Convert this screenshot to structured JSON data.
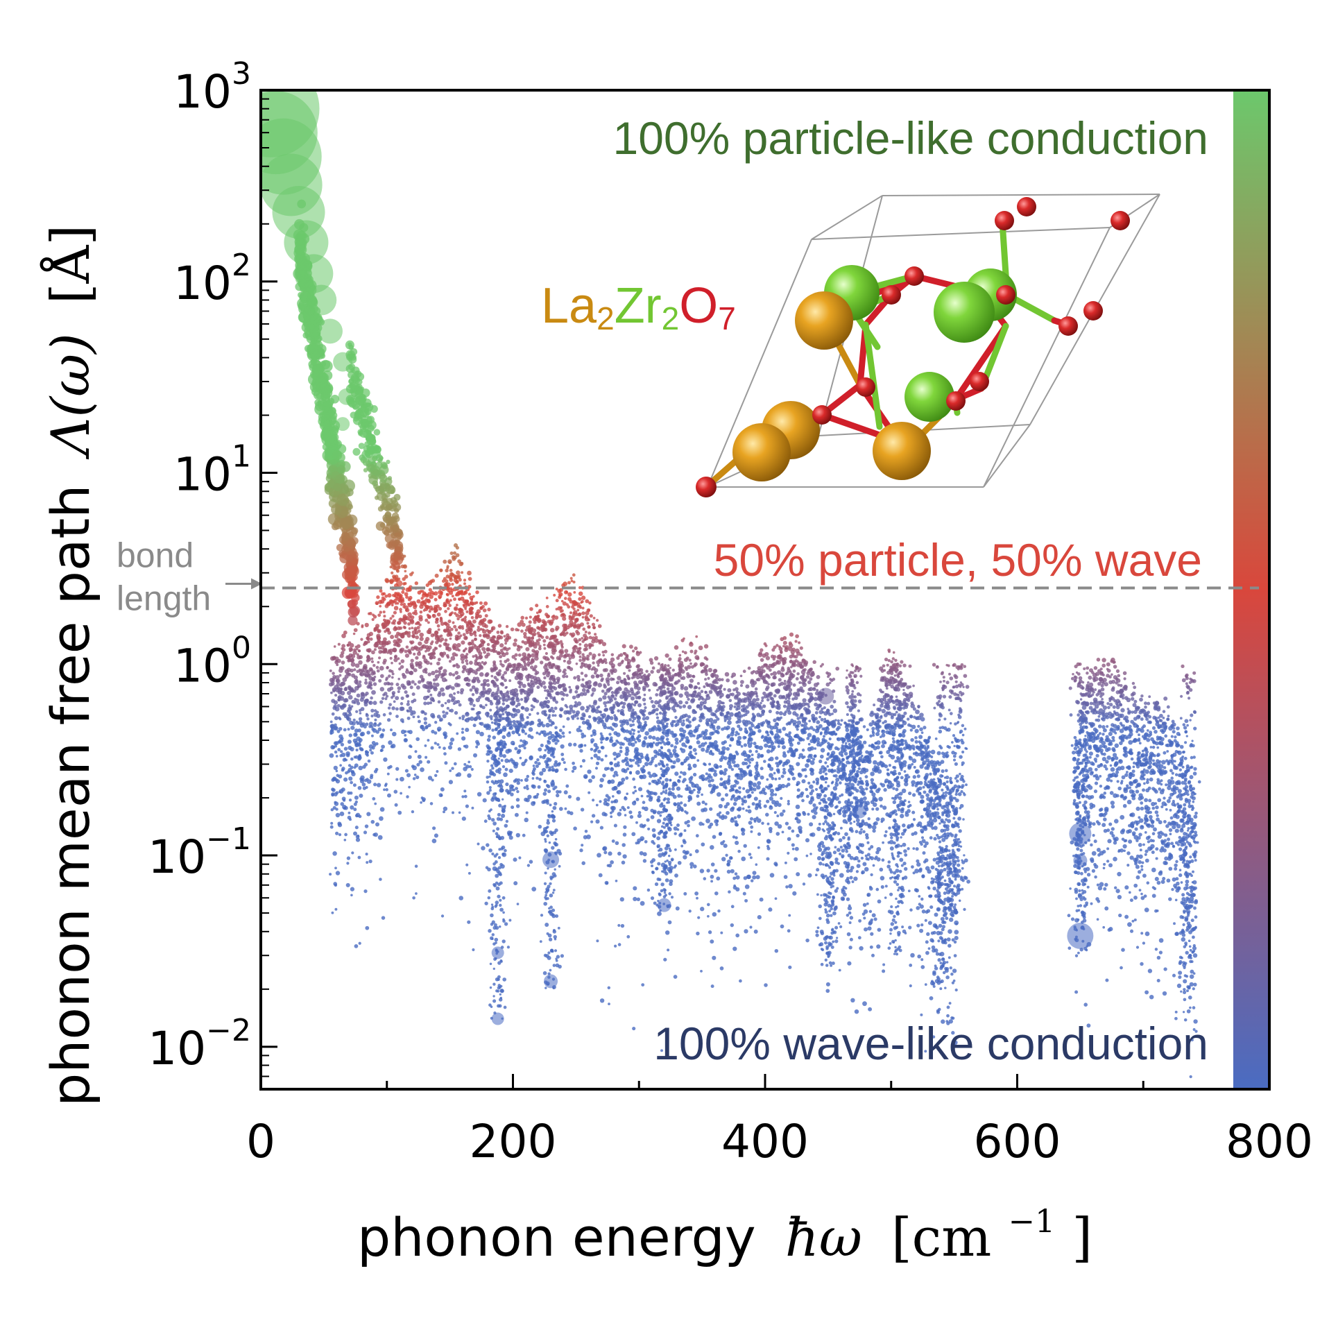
{
  "chart_data": {
    "type": "scatter",
    "xlabel_prefix": "phonon energy",
    "xlabel_symbol": "ħω",
    "xlabel_unit": "[cm",
    "xlabel_unit_exp": "−1",
    "xlabel_unit_end": "]",
    "ylabel_prefix": "phonon mean free path",
    "ylabel_symbol": "Λ(ω)",
    "ylabel_unit": "[Å]",
    "xlim": [
      0,
      800
    ],
    "ylim": [
      0.006,
      1000
    ],
    "yscale": "log",
    "x_ticks": [
      "0",
      "200",
      "400",
      "600",
      "800"
    ],
    "x_tick_values": [
      0,
      200,
      400,
      600,
      800
    ],
    "y_ticks": [
      {
        "value": 1000,
        "base": "10",
        "exp": "3"
      },
      {
        "value": 100,
        "base": "10",
        "exp": "2"
      },
      {
        "value": 10,
        "base": "10",
        "exp": "1"
      },
      {
        "value": 1,
        "base": "10",
        "exp": "0"
      },
      {
        "value": 0.1,
        "base": "10",
        "exp": "−1"
      },
      {
        "value": 0.01,
        "base": "10",
        "exp": "−2"
      }
    ],
    "reference_line": {
      "label_line1": "bond",
      "label_line2": "length",
      "value": 2.5,
      "style": "dashed",
      "color": "#8a8a8a"
    },
    "colorbar": {
      "top_color": "#6cc86c",
      "mid_color": "#d9473c",
      "bottom_color": "#4a6cc2",
      "label_top": "100% particle-like conduction",
      "label_mid": "50% particle, 50% wave",
      "label_bottom": "100% wave-like conduction"
    },
    "colors": {
      "particle": "#6cc86c",
      "mixed": "#d9473c",
      "wave": "#4a6cc2",
      "label_top": "#3f6e2e",
      "label_mid": "#d9473c",
      "label_bottom": "#2b3a66"
    },
    "large_markers": [
      {
        "x": 8,
        "y": 800,
        "size": 70
      },
      {
        "x": 12,
        "y": 600,
        "size": 60
      },
      {
        "x": 18,
        "y": 450,
        "size": 55
      },
      {
        "x": 24,
        "y": 320,
        "size": 45
      },
      {
        "x": 30,
        "y": 230,
        "size": 38
      },
      {
        "x": 36,
        "y": 160,
        "size": 32
      },
      {
        "x": 42,
        "y": 110,
        "size": 28
      },
      {
        "x": 48,
        "y": 80,
        "size": 22
      },
      {
        "x": 55,
        "y": 55,
        "size": 18
      },
      {
        "x": 65,
        "y": 38,
        "size": 14
      },
      {
        "x": 68,
        "y": 25,
        "size": 12
      },
      {
        "x": 65,
        "y": 18,
        "size": 10
      },
      {
        "x": 448,
        "y": 0.68,
        "size": 12
      },
      {
        "x": 475,
        "y": 0.17,
        "size": 10
      },
      {
        "x": 230,
        "y": 0.095,
        "size": 12
      },
      {
        "x": 230,
        "y": 0.022,
        "size": 10
      },
      {
        "x": 320,
        "y": 0.055,
        "size": 10
      },
      {
        "x": 188,
        "y": 0.031,
        "size": 9
      },
      {
        "x": 188,
        "y": 0.014,
        "size": 9
      },
      {
        "x": 650,
        "y": 0.13,
        "size": 16
      },
      {
        "x": 650,
        "y": 0.038,
        "size": 19
      },
      {
        "x": 650,
        "y": 0.094,
        "size": 10
      }
    ]
  },
  "inset": {
    "formula_la": "La",
    "formula_la_sub": "2",
    "formula_zr": "Zr",
    "formula_zr_sub": "2",
    "formula_o": "O",
    "formula_o_sub": "7",
    "colors": {
      "la": "#c98a12",
      "zr": "#72c632",
      "o": "#d01f2a"
    }
  }
}
